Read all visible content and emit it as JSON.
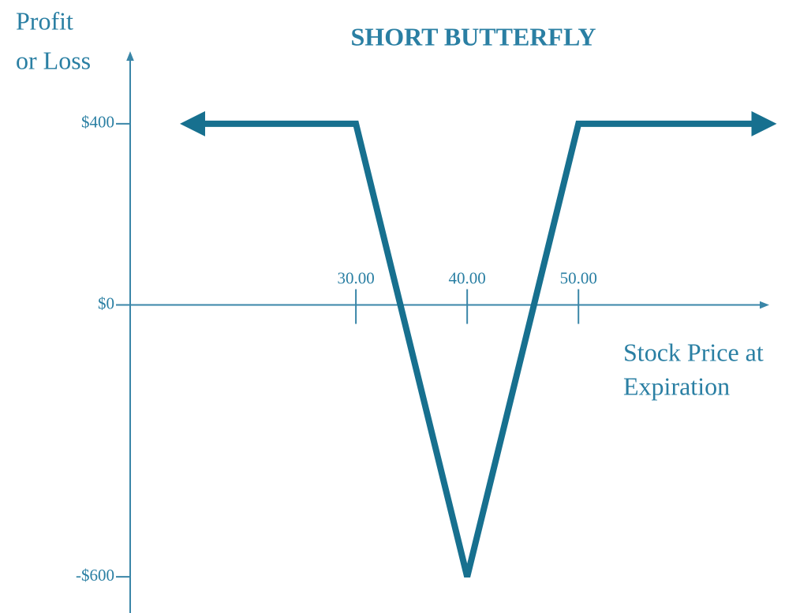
{
  "chart_data": {
    "type": "line",
    "title": "SHORT BUTTERFLY",
    "ylabel": [
      "Profit",
      "or Loss"
    ],
    "xlabel": [
      "Stock Price at",
      "Expiration"
    ],
    "series": [
      {
        "color": "#17708f",
        "x": [
          16,
          30,
          40,
          50,
          66
        ],
        "values": [
          400,
          400,
          -600,
          400,
          400
        ]
      }
    ],
    "xlim": [
      10,
      67
    ],
    "xticks": [
      {
        "value": 30,
        "label": "30.00"
      },
      {
        "value": 40,
        "label": "40.00"
      },
      {
        "value": 50,
        "label": "50.00"
      }
    ],
    "ylim": [
      -680,
      560
    ],
    "yticks": [
      {
        "value": 400,
        "label": "$400"
      },
      {
        "value": 0,
        "label": "$0"
      },
      {
        "value": -600,
        "label": "-$600"
      }
    ]
  }
}
